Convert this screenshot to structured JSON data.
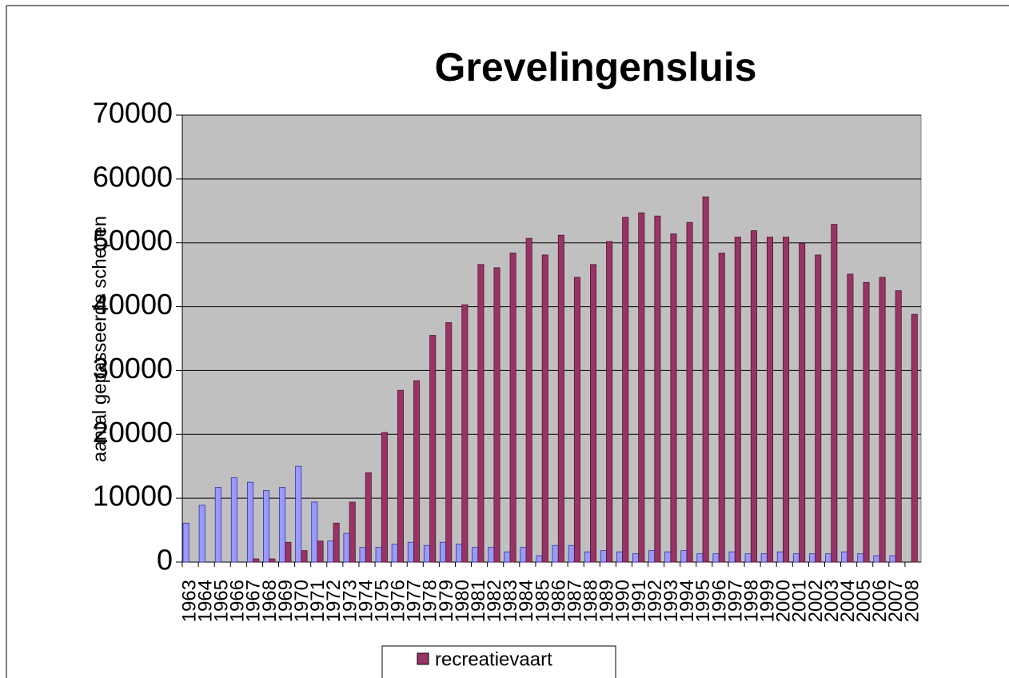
{
  "chart_data": {
    "type": "bar",
    "title": "Grevelingensluis",
    "y_label": "aantal gepasseerde schepen",
    "categories": [
      "1963",
      "1964",
      "1965",
      "1966",
      "1967",
      "1968",
      "1969",
      "1970",
      "1971",
      "1972",
      "1973",
      "1974",
      "1975",
      "1976",
      "1977",
      "1978",
      "1979",
      "1980",
      "1981",
      "1982",
      "1983",
      "1984",
      "1985",
      "1986",
      "1987",
      "1988",
      "1989",
      "1990",
      "1991",
      "1992",
      "1993",
      "1994",
      "1995",
      "1996",
      "1997",
      "1998",
      "1999",
      "2000",
      "2001",
      "2002",
      "2003",
      "2004",
      "2005",
      "2006",
      "2007",
      "2008"
    ],
    "series": [
      {
        "color": "#9999ff",
        "values": [
          6100,
          8900,
          11700,
          13200,
          12500,
          11200,
          11700,
          15000,
          9400,
          3300,
          4500,
          2300,
          2300,
          2800,
          3100,
          2600,
          3100,
          2800,
          2300,
          2300,
          1600,
          2300,
          1000,
          2600,
          2600,
          1600,
          1800,
          1600,
          1300,
          1800,
          1600,
          1800,
          1300,
          1300,
          1600,
          1300,
          1300,
          1600,
          1300,
          1300,
          1300,
          1600,
          1300,
          1000,
          1000,
          null
        ]
      },
      {
        "name": "recreatievaart",
        "color": "#993366",
        "values": [
          0,
          0,
          0,
          0,
          500,
          500,
          3100,
          1800,
          3300,
          6100,
          9400,
          14000,
          20300,
          26900,
          28400,
          35500,
          37500,
          40300,
          46600,
          46100,
          48400,
          50700,
          48100,
          51200,
          44600,
          46600,
          50200,
          54000,
          54700,
          54200,
          51400,
          53200,
          57200,
          48400,
          50900,
          51900,
          50900,
          50900,
          49900,
          48100,
          52900,
          45100,
          43800,
          44600,
          42500,
          38800
        ]
      }
    ],
    "ylim": [
      0,
      70000
    ],
    "yticks": [
      0,
      10000,
      20000,
      30000,
      40000,
      50000,
      60000,
      70000
    ],
    "grid": true,
    "legend": "bottom"
  }
}
